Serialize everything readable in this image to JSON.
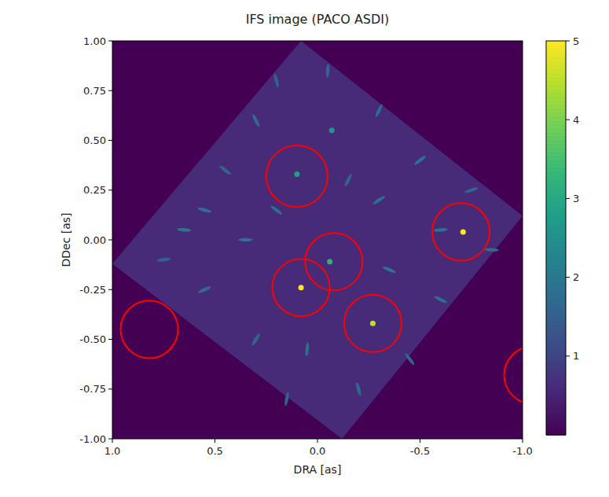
{
  "chart_data": {
    "type": "heatmap",
    "title": "IFS image (PACO ASDI)",
    "x_label": "DRA [as]",
    "y_label": "DDec [as]",
    "xlim": [
      1.0,
      -1.0
    ],
    "ylim": [
      -1.0,
      1.0
    ],
    "xticks": [
      {
        "value": 1,
        "label": "1.0"
      },
      {
        "value": 0.5,
        "label": "0.5"
      },
      {
        "value": 0,
        "label": "0.0"
      },
      {
        "value": -0.5,
        "label": "-0.5"
      },
      {
        "value": -1,
        "label": "-1.0"
      }
    ],
    "yticks": [
      {
        "value": -1,
        "label": "-1.00"
      },
      -0.75,
      {
        "value": -0.5,
        "label": "-0.50"
      },
      -0.25,
      {
        "value": 0,
        "label": "0.00"
      },
      0.25,
      {
        "value": 0.5,
        "label": "0.50"
      },
      0.75,
      {
        "value": 1,
        "label": "1.00"
      }
    ],
    "colorbar_lim": [
      0,
      5
    ],
    "colorbar_ticks": [
      1,
      2,
      3,
      4,
      5
    ],
    "field_of_view": {
      "x": [
        0.08,
        -1.0,
        -0.12,
        1.0
      ],
      "y": [
        1.0,
        0.12,
        -1.0,
        -0.12
      ],
      "value": 0.6
    },
    "speckles": {
      "x": [
        0.55,
        0.45,
        0.3,
        0.2,
        -0.05,
        -0.3,
        -0.5,
        -0.75,
        -0.85,
        -0.6,
        -0.45,
        -0.2,
        0.05,
        0.3,
        0.55,
        0.75,
        0.65,
        0.35,
        -0.3,
        -0.35,
        0.2,
        -0.15,
        0.15,
        -0.6
      ],
      "y": [
        0.15,
        0.35,
        0.6,
        0.8,
        0.85,
        0.65,
        0.4,
        0.25,
        -0.05,
        -0.3,
        -0.6,
        -0.75,
        -0.55,
        -0.5,
        -0.25,
        -0.1,
        0.05,
        0.0,
        0.2,
        -0.15,
        0.15,
        0.3,
        -0.8,
        0.05
      ],
      "values": [
        1.8,
        1.6,
        1.7,
        1.5,
        1.6,
        1.7,
        1.8,
        1.6,
        1.7,
        1.8,
        1.6,
        1.7,
        1.8,
        1.6,
        1.7,
        1.5,
        2.0,
        1.9,
        1.8,
        1.9,
        1.7,
        1.6,
        1.5,
        1.8
      ]
    },
    "sources": {
      "x": [
        0.1,
        -0.06,
        0.08,
        -0.27,
        -0.71,
        -0.07
      ],
      "y": [
        0.33,
        -0.11,
        -0.24,
        -0.42,
        0.04,
        0.55
      ],
      "values": [
        2.8,
        3.2,
        5.0,
        4.5,
        5.0,
        2.6
      ]
    },
    "circles": {
      "x": [
        0.1,
        -0.08,
        0.08,
        -0.27,
        -0.7,
        0.82,
        -1.05
      ],
      "y": [
        0.32,
        -0.11,
        -0.24,
        -0.42,
        0.04,
        -0.45,
        -0.68
      ],
      "radius": [
        0.15,
        0.14,
        0.14,
        0.14,
        0.14,
        0.14,
        0.14
      ],
      "color": "#ff0000"
    }
  }
}
